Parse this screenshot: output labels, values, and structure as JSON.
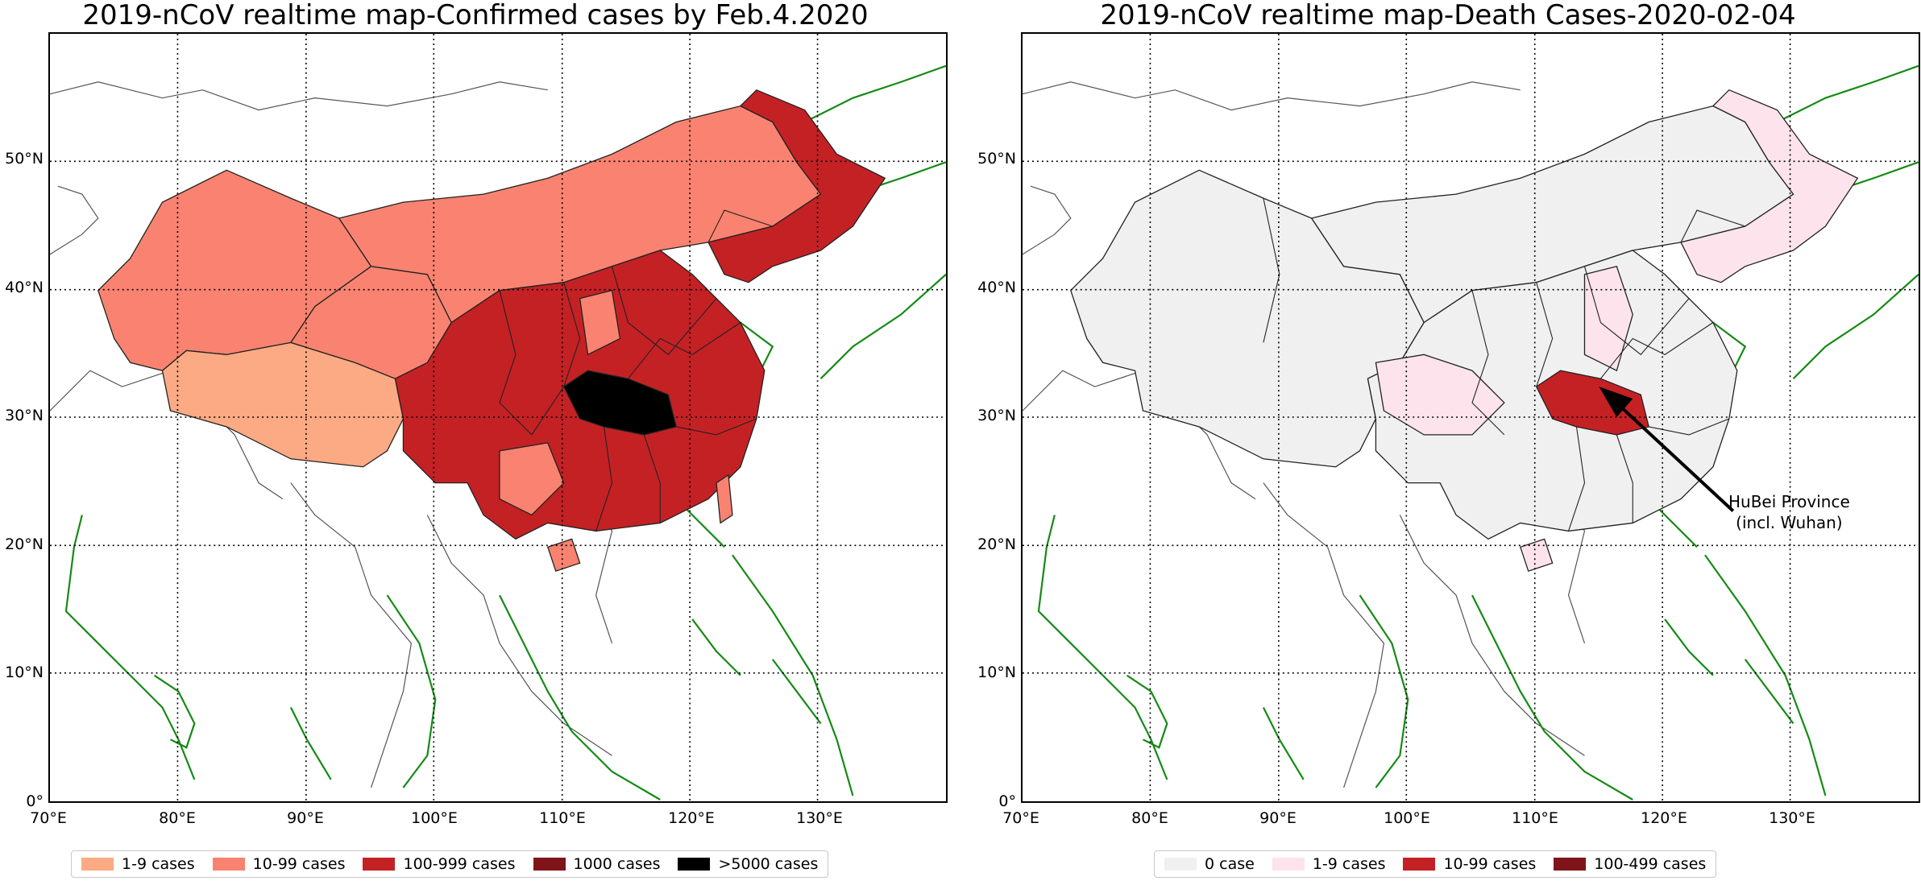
{
  "left_map": {
    "title": "2019-nCoV realtime map-Confirmed cases by Feb.4.2020",
    "lat_ticks": [
      "50°N",
      "40°N",
      "30°N",
      "20°N",
      "10°N",
      "0°"
    ],
    "lon_ticks": [
      "70°E",
      "80°E",
      "90°E",
      "100°E",
      "110°E",
      "120°E",
      "130°E"
    ],
    "legend": [
      {
        "label": "1-9 cases",
        "color": "#fcaa84"
      },
      {
        "label": "10-99 cases",
        "color": "#f98370"
      },
      {
        "label": "100-999 cases",
        "color": "#c42125"
      },
      {
        "label": "1000 cases",
        "color": "#7f1519"
      },
      {
        "label": ">5000 cases",
        "color": "#000000"
      }
    ]
  },
  "right_map": {
    "title": "2019-nCoV realtime map-Death Cases-2020-02-04",
    "lat_ticks": [
      "50°N",
      "40°N",
      "30°N",
      "20°N",
      "10°N",
      "0°"
    ],
    "lon_ticks": [
      "70°E",
      "80°E",
      "90°E",
      "100°E",
      "110°E",
      "120°E",
      "130°E"
    ],
    "legend": [
      {
        "label": "0 case",
        "color": "#f0f0f0"
      },
      {
        "label": "1-9 cases",
        "color": "#fde3ec"
      },
      {
        "label": "10-99 cases",
        "color": "#c42125"
      },
      {
        "label": "100-499 cases",
        "color": "#7f1519"
      }
    ],
    "annotation": {
      "line1": "HuBei Province",
      "line2": "(incl. Wuhan)"
    }
  },
  "colors": {
    "coast": "#158a15",
    "border": "#222222",
    "grid": "#000000",
    "arrow": "#000000"
  }
}
